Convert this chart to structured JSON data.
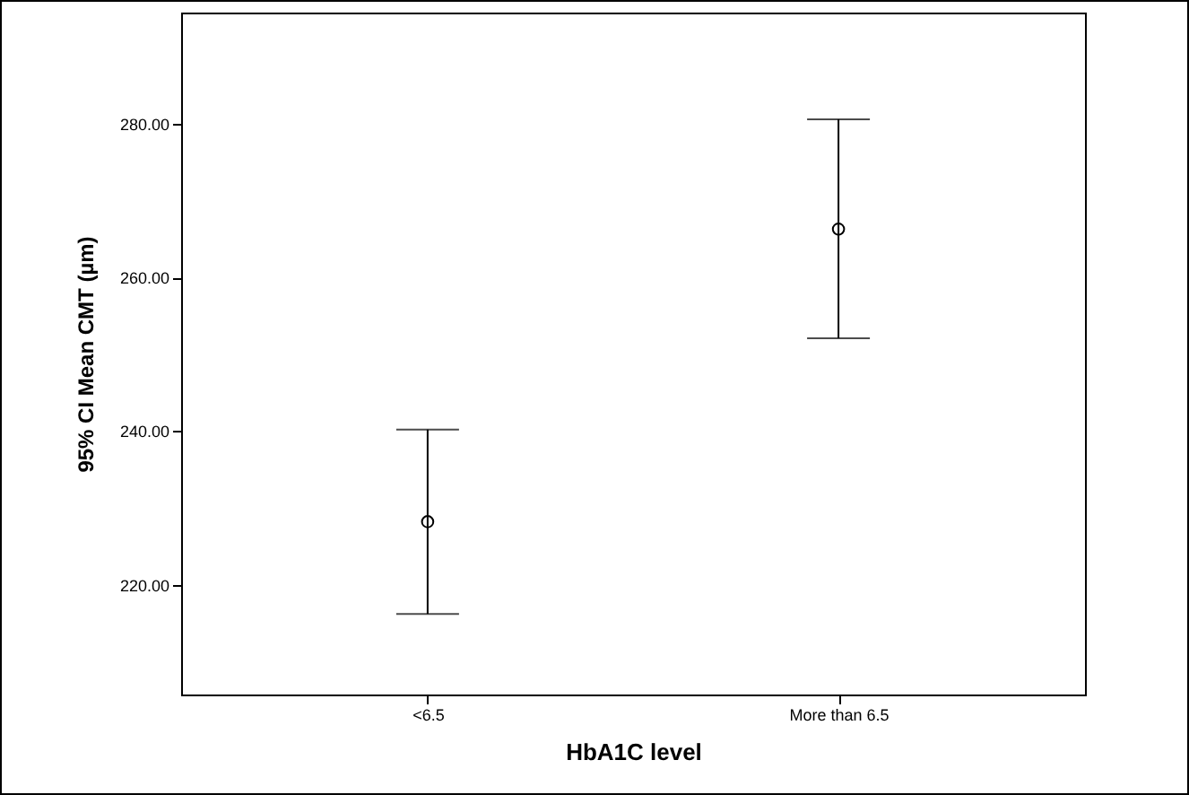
{
  "chart_data": {
    "type": "scatter",
    "xlabel": "HbA1C level",
    "ylabel": "95% CI Mean CMT (µm)",
    "categories": [
      "<6.5",
      "More than 6.5"
    ],
    "series": [
      {
        "color": "#000000",
        "values": [
          228.2,
          266.3
        ],
        "errors": [
          [
            216.2,
            240.2
          ],
          [
            252.1,
            280.6
          ]
        ]
      }
    ],
    "ylim": [
      205.7,
      294.5
    ],
    "yticks": [
      {
        "value": 220,
        "label": "220.00"
      },
      {
        "value": 240,
        "label": "240.00"
      },
      {
        "value": 260,
        "label": "260.00"
      },
      {
        "value": 280,
        "label": "280.00"
      }
    ],
    "marker": "circle",
    "grid": false
  }
}
